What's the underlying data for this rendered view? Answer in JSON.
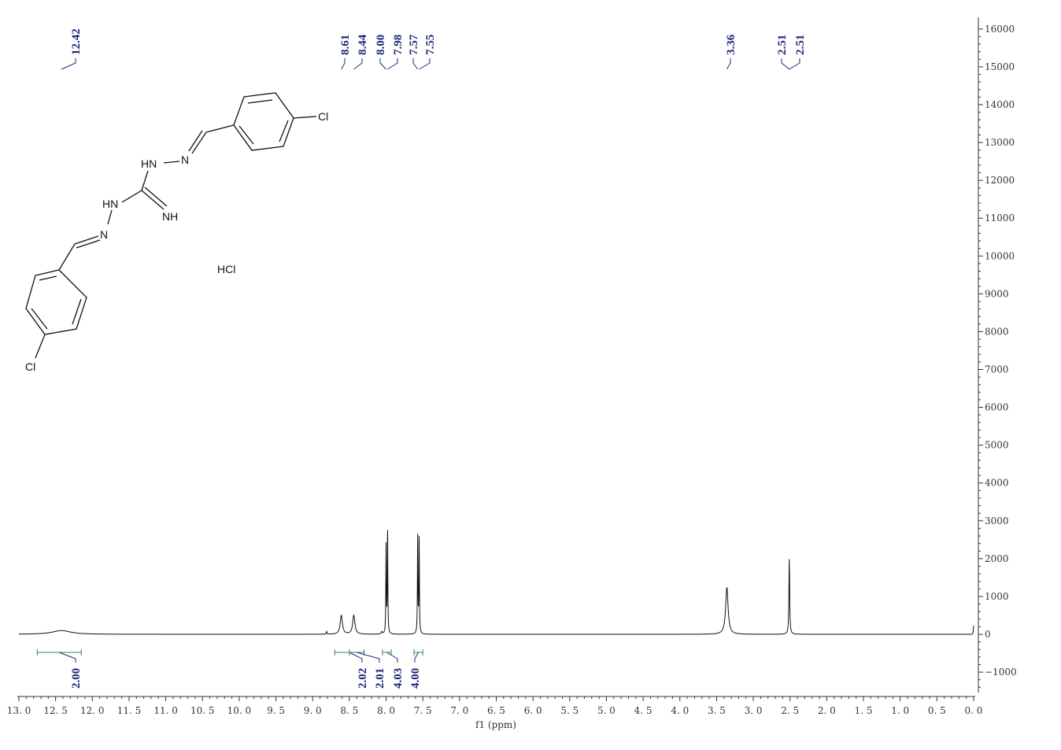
{
  "chart_data": {
    "type": "line",
    "x_axis": {
      "label": "f1 (ppm)",
      "range": [
        13.0,
        0.0
      ],
      "reversed": true,
      "ticks": [
        "13.0",
        "12.5",
        "12.0",
        "11.5",
        "11.0",
        "10.5",
        "10.0",
        "9.5",
        "9.0",
        "8.5",
        "8.0",
        "7.5",
        "7.0",
        "6.5",
        "6.0",
        "5.5",
        "5.0",
        "4.5",
        "4.0",
        "3.5",
        "3.0",
        "2.5",
        "2.0",
        "1.5",
        "1.0",
        "0.5",
        "0.0"
      ]
    },
    "y_axis": {
      "range": [
        -1600,
        16200
      ],
      "position": "right",
      "ticks": [
        "16000",
        "15000",
        "14000",
        "13000",
        "12000",
        "11000",
        "10000",
        "9000",
        "8000",
        "7000",
        "6000",
        "5000",
        "4000",
        "3000",
        "2000",
        "1000",
        "0",
        "-1000"
      ]
    },
    "series": [
      {
        "peaks": [
          {
            "ppm": 12.42,
            "height": 100,
            "width": 0.15
          },
          {
            "ppm": 8.81,
            "height": 70,
            "width": 0.005
          },
          {
            "ppm": 8.61,
            "height": 500,
            "width": 0.018
          },
          {
            "ppm": 8.44,
            "height": 500,
            "width": 0.018
          },
          {
            "ppm": 8.06,
            "height": 60,
            "width": 0.008
          },
          {
            "ppm": 8.0,
            "height": 2350,
            "width": 0.004
          },
          {
            "ppm": 7.98,
            "height": 2850,
            "width": 0.004
          },
          {
            "ppm": 7.57,
            "height": 2700,
            "width": 0.004
          },
          {
            "ppm": 7.55,
            "height": 2500,
            "width": 0.004
          },
          {
            "ppm": 3.36,
            "height": 1240,
            "width": 0.02
          },
          {
            "ppm": 2.51,
            "height": 2000,
            "width": 0.006
          },
          {
            "ppm": 0.0,
            "height": 230,
            "width": 0.004
          }
        ]
      }
    ],
    "peak_labels": [
      "12.42",
      "8.61",
      "8.44",
      "8.00",
      "7.98",
      "7.57",
      "7.55",
      "3.36",
      "2.51",
      "2.51"
    ],
    "integrals": [
      {
        "range": [
          12.75,
          12.15
        ],
        "value": "2.00"
      },
      {
        "range": [
          8.7,
          8.3
        ],
        "value": "2.02"
      },
      {
        "range": [
          8.5,
          8.3
        ],
        "value": "2.01"
      },
      {
        "range": [
          8.05,
          7.93
        ],
        "value": "4.03"
      },
      {
        "range": [
          7.62,
          7.5
        ],
        "value": "4.00"
      }
    ],
    "grid": false
  },
  "molecule": {
    "labels": [
      "Cl",
      "HN",
      "N",
      "HN",
      "NH",
      "N",
      "HCl",
      "Cl"
    ]
  },
  "colors": {
    "spectrum": "#111111",
    "peak_label": "#1f2a7a",
    "integral": "#2e8b57",
    "axis": "#333333"
  }
}
